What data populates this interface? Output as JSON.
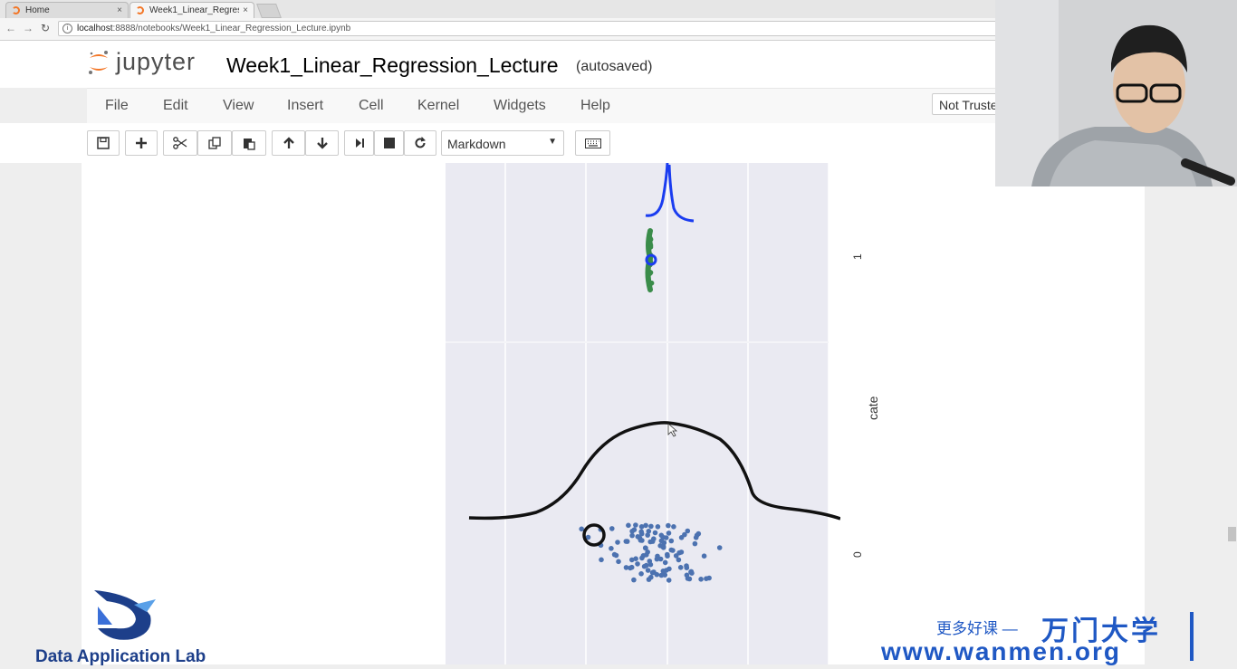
{
  "browser": {
    "tabs": [
      {
        "title": "Home",
        "close": "×"
      },
      {
        "title": "Week1_Linear_Regress",
        "close": "×"
      }
    ],
    "address": {
      "host": "localhost",
      "path": ":8888/notebooks/Week1_Linear_Regression_Lecture.ipynb"
    }
  },
  "jupyter": {
    "logo_text": "jupyter",
    "notebook_name": "Week1_Linear_Regression_Lecture",
    "save_status": "(autosaved)",
    "menu": [
      "File",
      "Edit",
      "View",
      "Insert",
      "Cell",
      "Kernel",
      "Widgets",
      "Help"
    ],
    "trust_label": "Not Trusted",
    "cell_type": "Markdown",
    "toolbar_icons": [
      "save-icon",
      "plus-icon",
      "scissors-icon",
      "copy-icon",
      "paste-icon",
      "arrow-up-icon",
      "arrow-down-icon",
      "run-icon",
      "stop-icon",
      "restart-icon",
      "keyboard-icon"
    ]
  },
  "chart_data": {
    "type": "scatter",
    "ylabel": "cate",
    "y_ticks": [
      "1",
      "0"
    ],
    "background": "#eaeaf2",
    "series": [
      {
        "category": 1,
        "color": "#4c72b0"
      },
      {
        "category": 0,
        "color": "#4c72b0"
      }
    ],
    "annotations": [
      {
        "type": "hand-drawn-curve",
        "color": "#1a3cf0"
      },
      {
        "type": "hand-drawn-curve",
        "color": "#111111"
      },
      {
        "type": "circle-marker",
        "color": "#111111"
      },
      {
        "type": "highlight-strokes",
        "color": "#3a8c4a"
      }
    ]
  },
  "watermarks": {
    "dal_text": "Data Application Lab",
    "cn_text": "更多好课 —",
    "brand_text": "万门大学",
    "url_text": "www.wanmen.org"
  },
  "colors": {
    "jupyter_orange": "#f37626",
    "wanmen_blue": "#1f58c4",
    "dal_blue": "#1d3f8a"
  }
}
